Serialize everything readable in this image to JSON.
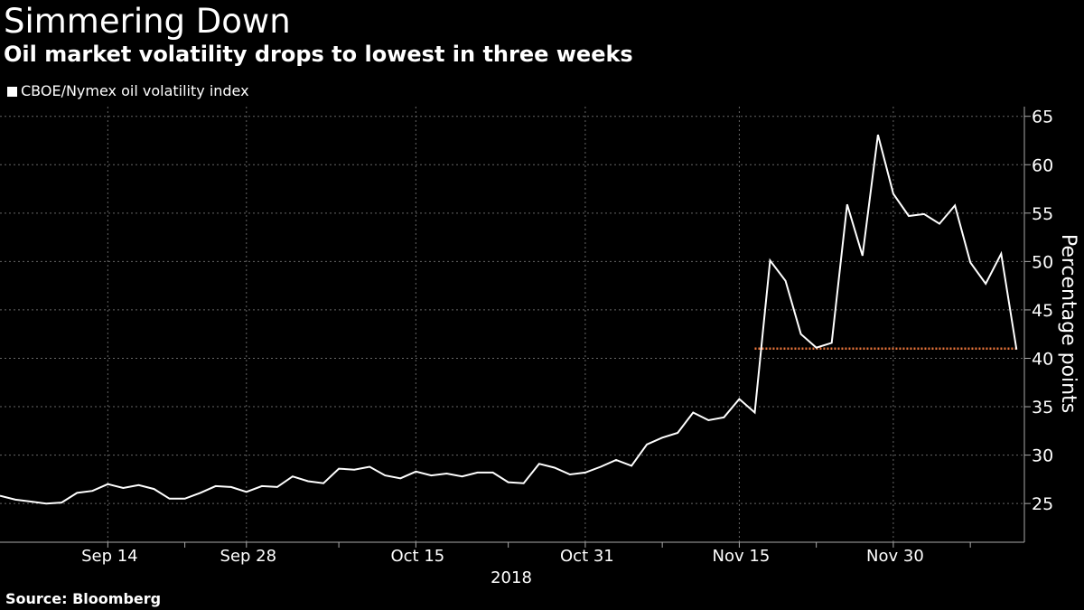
{
  "header": {
    "title": "Simmering Down",
    "subtitle": "Oil market volatility drops to lowest in three weeks"
  },
  "footer": {
    "source": "Source:  Bloomberg"
  },
  "colors": {
    "background": "#000000",
    "series_line": "#ffffff",
    "reference_line": "#e8743b",
    "grid": "#666666",
    "text": "#ffffff"
  },
  "chart_data": {
    "type": "line",
    "title": "Simmering Down",
    "subtitle": "Oil market volatility drops to lowest in three weeks",
    "xlabel": "2018",
    "ylabel": "Percentage points",
    "ylim": [
      21,
      66
    ],
    "yticks": [
      25,
      30,
      35,
      40,
      45,
      50,
      55,
      60,
      65
    ],
    "grid": true,
    "legend_position": "top-left",
    "x_tick_labels": [
      {
        "label": "Sep 14",
        "index": 7
      },
      {
        "label": "Sep 28",
        "index": 16
      },
      {
        "label": "Oct 15",
        "index": 27
      },
      {
        "label": "Oct 31",
        "index": 38
      },
      {
        "label": "Nov 15",
        "index": 48
      },
      {
        "label": "Nov 30",
        "index": 58
      }
    ],
    "x_minor_ticks": [
      7,
      12,
      16,
      22,
      27,
      33,
      38,
      43,
      48,
      53,
      58,
      63
    ],
    "x_vertical_grid": [
      7,
      16,
      27,
      38,
      48,
      58
    ],
    "series": [
      {
        "name": "CBOE/Nymex oil volatility index",
        "values": [
          25.8,
          25.4,
          25.2,
          25.0,
          25.1,
          26.1,
          26.3,
          27.0,
          26.6,
          26.9,
          26.5,
          25.5,
          25.5,
          26.1,
          26.8,
          26.7,
          26.2,
          26.8,
          26.7,
          27.8,
          27.3,
          27.1,
          28.6,
          28.5,
          28.8,
          27.9,
          27.6,
          28.3,
          27.9,
          28.1,
          27.8,
          28.2,
          28.2,
          27.2,
          27.1,
          29.1,
          28.7,
          28.0,
          28.2,
          28.8,
          29.5,
          28.9,
          31.1,
          31.8,
          32.3,
          34.4,
          33.6,
          33.9,
          35.8,
          34.4,
          50.1,
          48.0,
          42.5,
          41.1,
          41.6,
          55.9,
          50.6,
          63.1,
          57.0,
          54.7,
          54.9,
          53.9,
          55.8,
          49.9,
          47.7,
          50.8,
          40.9
        ]
      }
    ],
    "reference_line": {
      "value": 41.0,
      "from_index": 49,
      "to_index": 66
    }
  }
}
